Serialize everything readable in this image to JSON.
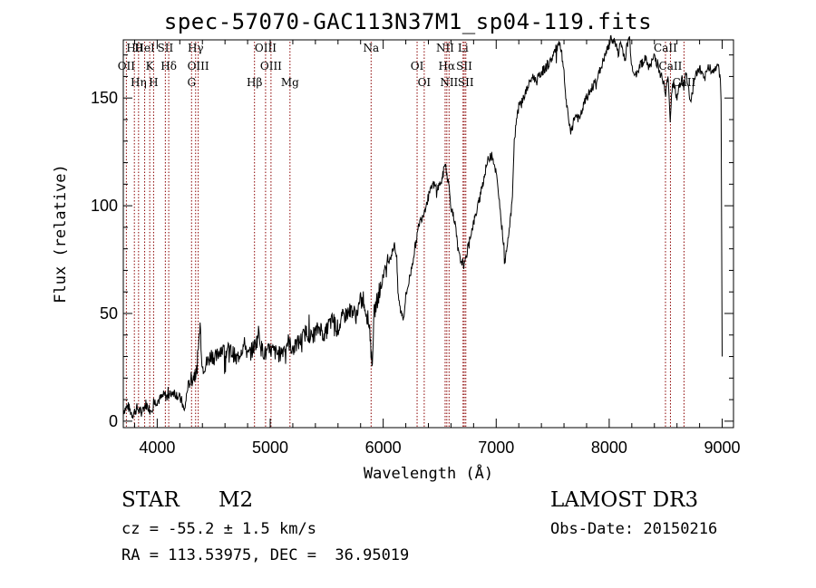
{
  "title": "spec-57070-GAC113N37M1_sp04-119.fits",
  "footer": {
    "object_class": "STAR",
    "subclass": "M2",
    "survey": "LAMOST DR3",
    "redshift": "cz = -55.2 ± 1.5 km/s",
    "obs_date": "Obs-Date: 20150216",
    "coords": "RA = 113.53975, DEC =  36.95019"
  },
  "chart_data": {
    "type": "line",
    "title": "spec-57070-GAC113N37M1_sp04-119.fits",
    "xlabel": "Wavelength (Å)",
    "ylabel": "Flux (relative)",
    "xlim": [
      3700,
      9100
    ],
    "ylim": [
      -3,
      177
    ],
    "xticks": [
      4000,
      5000,
      6000,
      7000,
      8000,
      9000
    ],
    "yticks": [
      0,
      50,
      100,
      150
    ],
    "line_color": "#000000",
    "marker_color": "#8b0000",
    "series": [
      {
        "name": "spectrum",
        "x": [
          3700,
          3740,
          3780,
          3820,
          3860,
          3900,
          3940,
          3980,
          4020,
          4060,
          4100,
          4140,
          4180,
          4220,
          4240,
          4270,
          4300,
          4320,
          4350,
          4380,
          4400,
          4440,
          4480,
          4520,
          4560,
          4600,
          4640,
          4680,
          4700,
          4740,
          4780,
          4800,
          4840,
          4880,
          4900,
          4920,
          4960,
          5000,
          5040,
          5080,
          5120,
          5160,
          5200,
          5240,
          5280,
          5320,
          5360,
          5400,
          5440,
          5480,
          5520,
          5560,
          5600,
          5640,
          5680,
          5720,
          5760,
          5800,
          5840,
          5880,
          5900,
          5920,
          5940,
          5980,
          6000,
          6040,
          6080,
          6100,
          6120,
          6130,
          6150,
          6180,
          6200,
          6240,
          6280,
          6320,
          6360,
          6400,
          6440,
          6480,
          6520,
          6550,
          6560,
          6580,
          6600,
          6620,
          6640,
          6660,
          6680,
          6700,
          6720,
          6740,
          6760,
          6800,
          6840,
          6880,
          6920,
          6960,
          7000,
          7040,
          7060,
          7080,
          7100,
          7120,
          7140,
          7160,
          7180,
          7200,
          7240,
          7280,
          7320,
          7360,
          7400,
          7440,
          7480,
          7520,
          7560,
          7580,
          7600,
          7620,
          7640,
          7660,
          7700,
          7740,
          7780,
          7820,
          7860,
          7900,
          7940,
          7980,
          8020,
          8060,
          8080,
          8100,
          8120,
          8140,
          8160,
          8180,
          8200,
          8240,
          8280,
          8320,
          8360,
          8400,
          8440,
          8480,
          8500,
          8520,
          8540,
          8560,
          8600,
          8640,
          8660,
          8680,
          8720,
          8760,
          8800,
          8840,
          8880,
          8920,
          8960,
          8980,
          8990,
          9000
        ],
        "values": [
          5,
          7,
          3,
          6,
          4,
          8,
          5,
          9,
          10,
          12,
          11,
          14,
          12,
          9,
          4,
          16,
          19,
          21,
          23,
          45,
          25,
          27,
          31,
          29,
          34,
          32,
          33,
          31,
          28,
          33,
          36,
          30,
          33,
          37,
          42,
          34,
          31,
          33,
          32,
          31,
          34,
          37,
          33,
          36,
          38,
          42,
          39,
          41,
          44,
          39,
          45,
          47,
          43,
          48,
          50,
          52,
          49,
          56,
          53,
          44,
          25,
          50,
          55,
          62,
          68,
          74,
          78,
          83,
          75,
          60,
          52,
          48,
          58,
          68,
          80,
          92,
          97,
          104,
          110,
          108,
          112,
          120,
          116,
          110,
          100,
          95,
          90,
          80,
          75,
          74,
          72,
          78,
          84,
          92,
          100,
          110,
          120,
          125,
          115,
          95,
          85,
          75,
          83,
          92,
          100,
          130,
          140,
          146,
          150,
          155,
          160,
          158,
          162,
          164,
          167,
          172,
          175,
          170,
          160,
          148,
          140,
          135,
          142,
          140,
          148,
          152,
          156,
          160,
          166,
          172,
          178,
          175,
          170,
          176,
          172,
          168,
          175,
          178,
          165,
          160,
          166,
          168,
          164,
          170,
          163,
          158,
          150,
          162,
          140,
          158,
          150,
          160,
          155,
          162,
          148,
          160,
          164,
          158,
          165,
          162,
          166,
          160,
          150,
          30
        ]
      }
    ],
    "lines": [
      {
        "name": "Hθ",
        "wavelength": 3798
      },
      {
        "name": "OII",
        "wavelength": 3727
      },
      {
        "name": "Hη",
        "wavelength": 3835
      },
      {
        "name": "HeI",
        "wavelength": 3889
      },
      {
        "name": "K",
        "wavelength": 3934
      },
      {
        "name": "H",
        "wavelength": 3968
      },
      {
        "name": "SII",
        "wavelength": 4072
      },
      {
        "name": "Hδ",
        "wavelength": 4102
      },
      {
        "name": "G",
        "wavelength": 4304
      },
      {
        "name": "Hγ",
        "wavelength": 4340
      },
      {
        "name": "OIII",
        "wavelength": 4363
      },
      {
        "name": "Hβ",
        "wavelength": 4861
      },
      {
        "name": "OIII",
        "wavelength": 4959
      },
      {
        "name": "OIII",
        "wavelength": 5007
      },
      {
        "name": "Mg",
        "wavelength": 5175
      },
      {
        "name": "Na",
        "wavelength": 5893
      },
      {
        "name": "OI",
        "wavelength": 6300
      },
      {
        "name": "OI",
        "wavelength": 6363
      },
      {
        "name": "NII",
        "wavelength": 6548
      },
      {
        "name": "Hα",
        "wavelength": 6563
      },
      {
        "name": "NII",
        "wavelength": 6583
      },
      {
        "name": "Li",
        "wavelength": 6707
      },
      {
        "name": "SII",
        "wavelength": 6717
      },
      {
        "name": "SII",
        "wavelength": 6731
      },
      {
        "name": "CaII",
        "wavelength": 8498
      },
      {
        "name": "CaII",
        "wavelength": 8542
      },
      {
        "name": "CaII",
        "wavelength": 8662
      }
    ]
  }
}
